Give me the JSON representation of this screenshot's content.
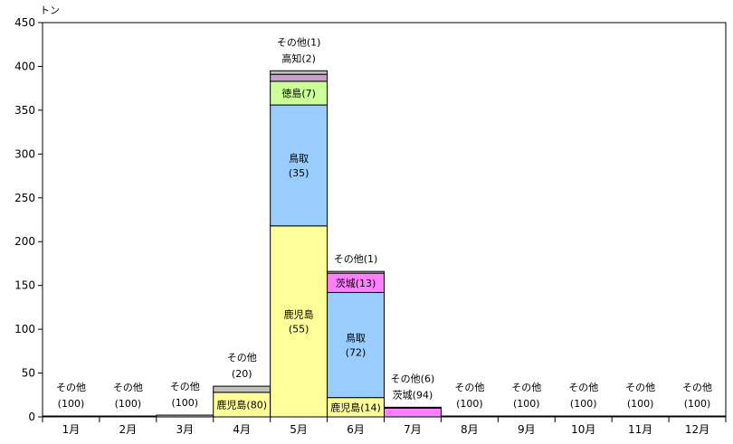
{
  "chart_data": {
    "type": "bar",
    "stacked": true,
    "unit": "トン",
    "ylim": [
      0,
      450
    ],
    "yticks": [
      0,
      50,
      100,
      150,
      200,
      250,
      300,
      350,
      400,
      450
    ],
    "grid": false,
    "categories": [
      "1月",
      "2月",
      "3月",
      "4月",
      "5月",
      "6月",
      "7月",
      "8月",
      "9月",
      "10月",
      "11月",
      "12月"
    ],
    "colors": {
      "鹿児島": "#ffff99",
      "鳥取": "#99ccff",
      "徳島": "#ccff99",
      "高知": "#c8a0c8",
      "茨城": "#ff80ff",
      "その他": "#c0c0c0"
    },
    "series": [
      {
        "name": "鹿児島",
        "values": [
          0,
          0,
          0,
          28,
          218,
          22,
          0,
          0,
          0,
          0,
          0,
          0
        ]
      },
      {
        "name": "鳥取",
        "values": [
          0,
          0,
          0,
          0,
          138,
          120,
          0,
          0,
          0,
          0,
          0,
          0
        ]
      },
      {
        "name": "徳島",
        "values": [
          0,
          0,
          0,
          0,
          27,
          0,
          0,
          0,
          0,
          0,
          0,
          0
        ]
      },
      {
        "name": "高知",
        "values": [
          0,
          0,
          0,
          0,
          8,
          0,
          0,
          0,
          0,
          0,
          0,
          0
        ]
      },
      {
        "name": "茨城",
        "values": [
          0,
          0,
          0,
          0,
          0,
          22,
          10,
          0,
          0,
          0,
          0,
          0
        ]
      },
      {
        "name": "その他",
        "values": [
          1,
          1,
          2,
          7,
          4,
          2,
          1,
          1,
          1,
          1,
          1,
          1
        ]
      }
    ],
    "segment_labels": [
      {
        "month": 3,
        "series": "鹿児島",
        "lines": [
          "鹿児島(80)"
        ]
      },
      {
        "month": 4,
        "series": "鹿児島",
        "lines": [
          "鹿児島",
          "(55)"
        ]
      },
      {
        "month": 4,
        "series": "鳥取",
        "lines": [
          "鳥取",
          "(35)"
        ]
      },
      {
        "month": 4,
        "series": "徳島",
        "lines": [
          "徳島(7)"
        ]
      },
      {
        "month": 5,
        "series": "鹿児島",
        "lines": [
          "鹿児島(14)"
        ]
      },
      {
        "month": 5,
        "series": "鳥取",
        "lines": [
          "鳥取",
          "(72)"
        ]
      },
      {
        "month": 5,
        "series": "茨城",
        "lines": [
          "茨城(13)"
        ]
      }
    ],
    "annotations": [
      {
        "month": 0,
        "lines": [
          "その他",
          "(100)"
        ]
      },
      {
        "month": 1,
        "lines": [
          "その他",
          "(100)"
        ]
      },
      {
        "month": 2,
        "lines": [
          "その他",
          "(100)"
        ]
      },
      {
        "month": 3,
        "lines": [
          "その他",
          "(20)"
        ]
      },
      {
        "month": 4,
        "lines": [
          "その他(1)",
          "高知(2)"
        ]
      },
      {
        "month": 5,
        "lines": [
          "その他(1)"
        ]
      },
      {
        "month": 6,
        "lines": [
          "その他(6)",
          "茨城(94)"
        ]
      },
      {
        "month": 7,
        "lines": [
          "その他",
          "(100)"
        ]
      },
      {
        "month": 8,
        "lines": [
          "その他",
          "(100)"
        ]
      },
      {
        "month": 9,
        "lines": [
          "その他",
          "(100)"
        ]
      },
      {
        "month": 10,
        "lines": [
          "その他",
          "(100)"
        ]
      },
      {
        "month": 11,
        "lines": [
          "その他",
          "(100)"
        ]
      }
    ]
  }
}
